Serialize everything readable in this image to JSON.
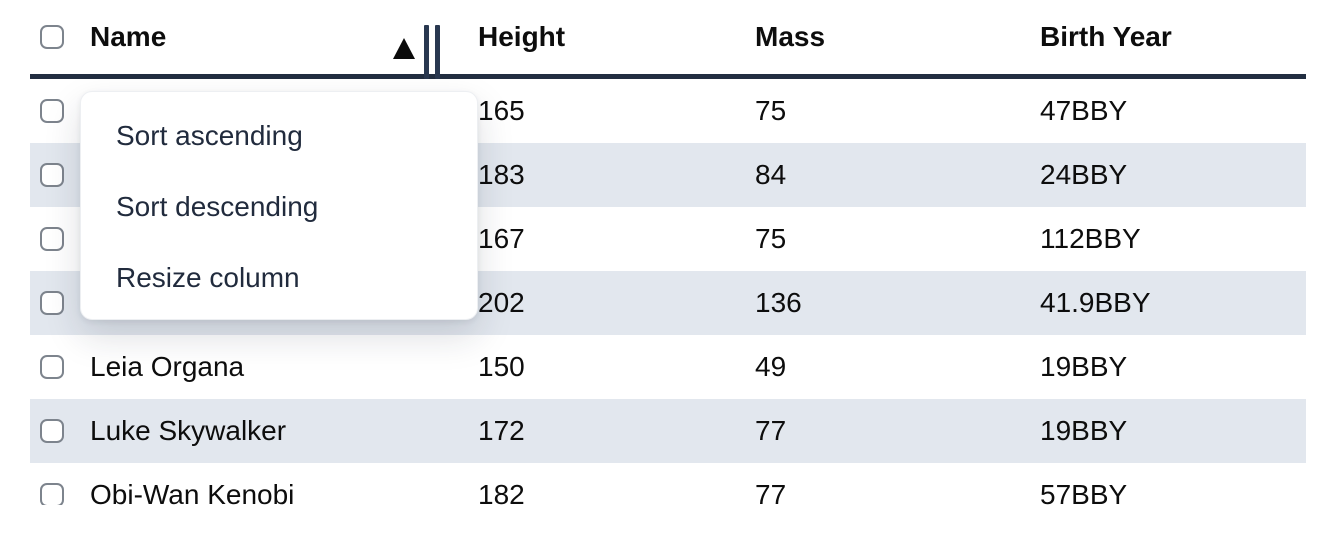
{
  "colors": {
    "header_border": "#222e41",
    "resize_bars": "#293850",
    "row_stripe": "#e2e7ee",
    "body_text": "#0d0d0d",
    "menu_text": "#212b3d",
    "checkbox_border": "#7d848d",
    "background": "#ffffff"
  },
  "table": {
    "columns": [
      {
        "key": "name",
        "label": "Name"
      },
      {
        "key": "height",
        "label": "Height"
      },
      {
        "key": "mass",
        "label": "Mass"
      },
      {
        "key": "birth_year",
        "label": "Birth Year"
      }
    ],
    "sort": {
      "column": "Name",
      "direction": "ascending",
      "indicator": "triangle-up"
    },
    "rows": [
      {
        "name": "",
        "height": "165",
        "mass": "75",
        "birth_year": "47BBY"
      },
      {
        "name": "",
        "height": "183",
        "mass": "84",
        "birth_year": "24BBY"
      },
      {
        "name": "",
        "height": "167",
        "mass": "75",
        "birth_year": "112BBY"
      },
      {
        "name": "",
        "height": "202",
        "mass": "136",
        "birth_year": "41.9BBY"
      },
      {
        "name": "Leia Organa",
        "height": "150",
        "mass": "49",
        "birth_year": "19BBY"
      },
      {
        "name": "Luke Skywalker",
        "height": "172",
        "mass": "77",
        "birth_year": "19BBY"
      },
      {
        "name": "Obi-Wan Kenobi",
        "height": "182",
        "mass": "77",
        "birth_year": "57BBY"
      }
    ]
  },
  "column_menu": {
    "open_for_column": "Name",
    "items": [
      {
        "label": "Sort ascending"
      },
      {
        "label": "Sort descending"
      },
      {
        "label": "Resize column"
      }
    ]
  },
  "icons": {
    "sort_indicator": "triangle-up-icon",
    "column_resize": "double-bar-icon",
    "row_select": "checkbox"
  }
}
